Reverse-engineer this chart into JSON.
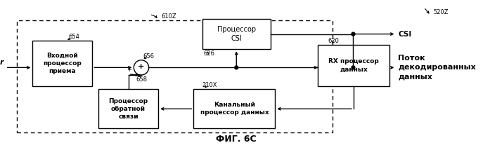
{
  "title": "ФИГ. 6С",
  "label_610Z": "610Z",
  "label_520Z": "520Z",
  "label_654": "654",
  "label_656": "656",
  "label_658": "658",
  "label_626": "626",
  "label_620": "620",
  "label_210X": "210X",
  "box_input": "Входной\nпроцессор\nприема",
  "box_csi": "Процессор\nCSI",
  "box_rx": "RX процессор\nданных",
  "box_feedback": "Процессор\nобратной\nсвязи",
  "box_channel": "Канальный\nпроцессор данных",
  "label_r": "r",
  "label_csi": "CSI",
  "label_output": "Поток\nдекодированных\nданных",
  "background_color": "#ffffff",
  "box_color": "#ffffff",
  "box_edge": "#000000",
  "arrow_color": "#000000",
  "text_color": "#000000",
  "font_size": 7.0,
  "small_font": 6.0,
  "title_font": 9.0
}
